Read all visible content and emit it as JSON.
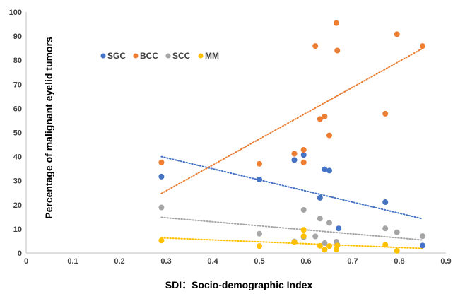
{
  "chart_data": {
    "type": "scatter",
    "xlabel": "SDI：Socio-demographic Index",
    "ylabel": "Percentage of malignant eyelid tumors",
    "xlim": [
      0,
      0.9
    ],
    "ylim": [
      0,
      100
    ],
    "x_ticks": [
      "0",
      "0.1",
      "0.2",
      "0.3",
      "0.4",
      "0.5",
      "0.6",
      "0.7",
      "0.8",
      "0.9"
    ],
    "y_ticks": [
      "0",
      "10",
      "20",
      "30",
      "40",
      "50",
      "60",
      "70",
      "80",
      "90",
      "100"
    ],
    "grid": false,
    "legend_position": "top-left",
    "series": [
      {
        "name": "SGC",
        "color": "#4472c4",
        "points": [
          [
            0.29,
            31.7
          ],
          [
            0.5,
            30.5
          ],
          [
            0.575,
            38.6
          ],
          [
            0.595,
            40.7
          ],
          [
            0.63,
            22.9
          ],
          [
            0.64,
            34.7
          ],
          [
            0.65,
            34.2
          ],
          [
            0.67,
            10.2
          ],
          [
            0.77,
            21.1
          ],
          [
            0.85,
            3.1
          ]
        ],
        "trendline": [
          [
            0.29,
            40.0
          ],
          [
            0.85,
            14.2
          ]
        ]
      },
      {
        "name": "BCC",
        "color": "#ed7d31",
        "points": [
          [
            0.29,
            37.6
          ],
          [
            0.5,
            37.0
          ],
          [
            0.575,
            41.2
          ],
          [
            0.595,
            37.6
          ],
          [
            0.595,
            42.8
          ],
          [
            0.62,
            85.9
          ],
          [
            0.63,
            55.6
          ],
          [
            0.64,
            56.6
          ],
          [
            0.65,
            48.8
          ],
          [
            0.665,
            95.4
          ],
          [
            0.667,
            84.0
          ],
          [
            0.77,
            57.8
          ],
          [
            0.795,
            90.8
          ],
          [
            0.85,
            85.9
          ]
        ],
        "trendline": [
          [
            0.29,
            24.7
          ],
          [
            0.85,
            84.9
          ]
        ]
      },
      {
        "name": "SCC",
        "color": "#a5a5a5",
        "points": [
          [
            0.29,
            18.9
          ],
          [
            0.5,
            8.0
          ],
          [
            0.575,
            4.8
          ],
          [
            0.595,
            17.9
          ],
          [
            0.595,
            6.6
          ],
          [
            0.62,
            6.9
          ],
          [
            0.63,
            14.3
          ],
          [
            0.64,
            4.1
          ],
          [
            0.65,
            12.5
          ],
          [
            0.665,
            4.7
          ],
          [
            0.667,
            3.5
          ],
          [
            0.77,
            10.2
          ],
          [
            0.795,
            8.6
          ],
          [
            0.85,
            7.0
          ]
        ],
        "trendline": [
          [
            0.29,
            14.8
          ],
          [
            0.85,
            5.4
          ]
        ]
      },
      {
        "name": "MM",
        "color": "#ffc000",
        "points": [
          [
            0.29,
            5.2
          ],
          [
            0.5,
            2.9
          ],
          [
            0.575,
            4.6
          ],
          [
            0.595,
            9.6
          ],
          [
            0.595,
            7.0
          ],
          [
            0.63,
            3.0
          ],
          [
            0.64,
            1.4
          ],
          [
            0.65,
            2.9
          ],
          [
            0.665,
            1.5
          ],
          [
            0.667,
            3.1
          ],
          [
            0.77,
            3.4
          ],
          [
            0.795,
            0.9
          ]
        ],
        "trendline": [
          [
            0.29,
            6.3
          ],
          [
            0.85,
            1.9
          ]
        ]
      }
    ]
  }
}
